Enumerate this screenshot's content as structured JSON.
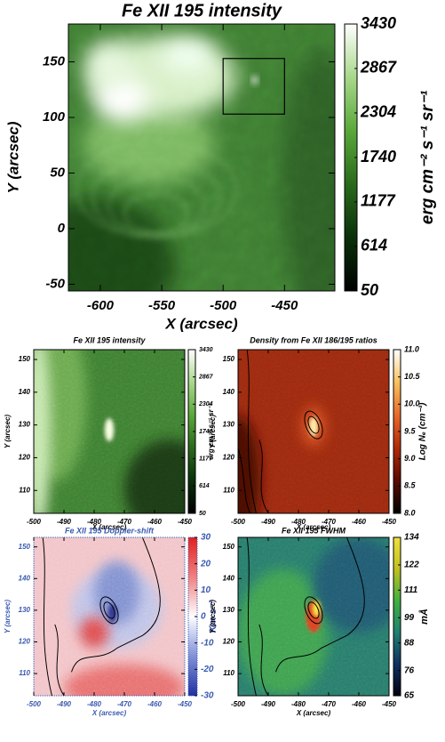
{
  "chart_data": [
    {
      "type": "heatmap",
      "title": "Fe XII 195 intensity",
      "xlabel": "X (arcsec)",
      "ylabel": "Y (arcsec)",
      "xlim": [
        -626,
        -409
      ],
      "ylim": [
        -56,
        184
      ],
      "xticks": [
        -600,
        -550,
        -500,
        -450
      ],
      "yticks": [
        -50,
        0,
        50,
        100,
        150
      ],
      "colorbar_label": "erg cm⁻² s⁻¹ sr⁻¹",
      "colorbar_lim": [
        50,
        3430
      ],
      "colorbar_ticks": [
        50,
        614,
        1177,
        1740,
        2304,
        2867,
        3430
      ],
      "colors": [
        "#000000",
        "#0a300a",
        "#2a6a1c",
        "#5aa83a",
        "#a8d88a",
        "#ffffff"
      ],
      "text_color": "#000000"
    },
    {
      "type": "heatmap",
      "title": "Fe XII 195 intensity",
      "xlabel": "X (arcsec)",
      "ylabel": "Y (arcsec)",
      "xlim": [
        -500,
        -450
      ],
      "ylim": [
        103,
        153
      ],
      "xticks": [
        -500,
        -490,
        -480,
        -470,
        -460,
        -450
      ],
      "yticks": [
        110,
        120,
        130,
        140,
        150
      ],
      "colorbar_label": "erg cm⁻² s⁻¹ sr⁻¹",
      "colorbar_lim": [
        50,
        3430
      ],
      "colorbar_ticks": [
        50,
        614,
        1177,
        1740,
        2304,
        2867,
        3430
      ],
      "colors": [
        "#000000",
        "#0a300a",
        "#2a6a1c",
        "#5aa83a",
        "#a8d88a",
        "#ffffff"
      ],
      "text_color": "#000000"
    },
    {
      "type": "heatmap",
      "title": "Density from Fe XII 186/195 ratios",
      "xlabel": "X (arcsec)",
      "ylabel": "Y (arcsec)",
      "xlim": [
        -500,
        -450
      ],
      "ylim": [
        103,
        153
      ],
      "xticks": [
        -500,
        -490,
        -480,
        -470,
        -460,
        -450
      ],
      "yticks": [
        110,
        120,
        130,
        140,
        150
      ],
      "colorbar_label": "Log Nₑ (cm⁻³)",
      "colorbar_lim": [
        8,
        11
      ],
      "colorbar_ticks": [
        {
          "value": 8,
          "label": "8.0"
        },
        {
          "value": 8.5,
          "label": "8.5"
        },
        {
          "value": 9,
          "label": "9.0"
        },
        {
          "value": 9.5,
          "label": "9.5"
        },
        {
          "value": 10,
          "label": "10.0"
        },
        {
          "value": 10.5,
          "label": "10.5"
        },
        {
          "value": 11,
          "label": "11.0"
        }
      ],
      "colors": [
        "#000000",
        "#5a0a00",
        "#b02a0a",
        "#e86a2a",
        "#f8c060",
        "#ffffff"
      ],
      "text_color": "#000000"
    },
    {
      "type": "heatmap",
      "title": "Fe XII 195 Doppler-shift",
      "xlabel": "X (arcsec)",
      "ylabel": "Y (arcsec)",
      "xlim": [
        -500,
        -450
      ],
      "ylim": [
        103,
        153
      ],
      "xticks": [
        -500,
        -490,
        -480,
        -470,
        -460,
        -450
      ],
      "yticks": [
        110,
        120,
        130,
        140,
        150
      ],
      "colorbar_label": "Km s⁻¹",
      "colorbar_lim": [
        -30,
        30
      ],
      "colorbar_ticks": [
        -30,
        -20,
        -10,
        0,
        10,
        20,
        30
      ],
      "colors": [
        "#2030a0",
        "#8090d8",
        "#ffffff",
        "#f08080",
        "#e02020"
      ],
      "text_color": "#3a5ab0"
    },
    {
      "type": "heatmap",
      "title": "Fe XII 195 FWHM",
      "xlabel": "X (arcsec)",
      "ylabel": "Y (arcsec)",
      "xlim": [
        -500,
        -450
      ],
      "ylim": [
        103,
        153
      ],
      "xticks": [
        -500,
        -490,
        -480,
        -470,
        -460,
        -450
      ],
      "yticks": [
        110,
        120,
        130,
        140,
        150
      ],
      "colorbar_label": "mÅ",
      "colorbar_lim": [
        65,
        134
      ],
      "colorbar_ticks": [
        65,
        76,
        88,
        99,
        111,
        122,
        134
      ],
      "colors": [
        "#000010",
        "#103060",
        "#208070",
        "#40b040",
        "#c0c020",
        "#f0e040"
      ],
      "text_color": "#000000"
    }
  ]
}
